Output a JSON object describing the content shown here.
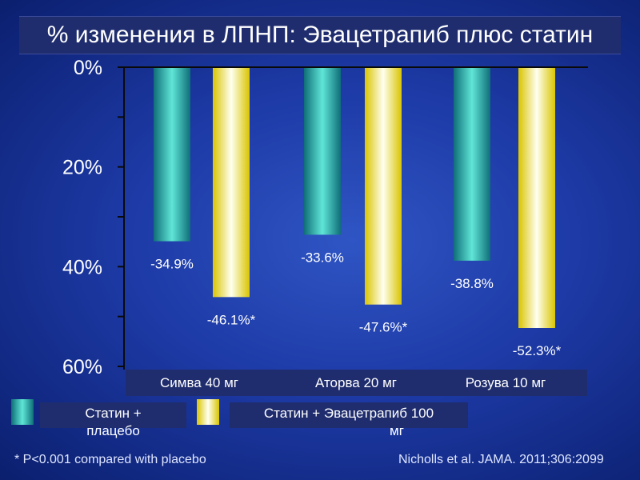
{
  "title": "%  изменения в ЛПНП:  Эвацетрапиб плюс статин",
  "chart_data": {
    "type": "bar",
    "categories": [
      "Симва 40 мг",
      "Аторва 20 мг",
      "Розува 10 мг"
    ],
    "series": [
      {
        "name": "Статин + плацебо",
        "values": [
          -34.9,
          -33.6,
          -38.8
        ],
        "labels": [
          "-34.9%",
          "-33.6%",
          "-38.8%"
        ],
        "color": "#2fb8b0"
      },
      {
        "name": "Статин + Эвацетрапиб 100 мг",
        "values": [
          -46.1,
          -47.6,
          -52.3
        ],
        "labels": [
          "-46.1%*",
          "-47.6%*",
          "-52.3%*"
        ],
        "color": "#f3ee3a"
      }
    ],
    "y_ticks": [
      "0%",
      "20%",
      "40%",
      "60%"
    ],
    "ylim": [
      0,
      -60
    ],
    "grid": false,
    "legend_position": "bottom-left"
  },
  "legend": {
    "item1_line1": "Статин +",
    "item1_line2": "плацебо",
    "item2_line1": "Статин + Эвацетрапиб 100",
    "item2_line2": "мг"
  },
  "footnote_left": "* P<0.001 compared with placebo",
  "footnote_right": "Nicholls et al. JAMA. 2011;306:2099"
}
